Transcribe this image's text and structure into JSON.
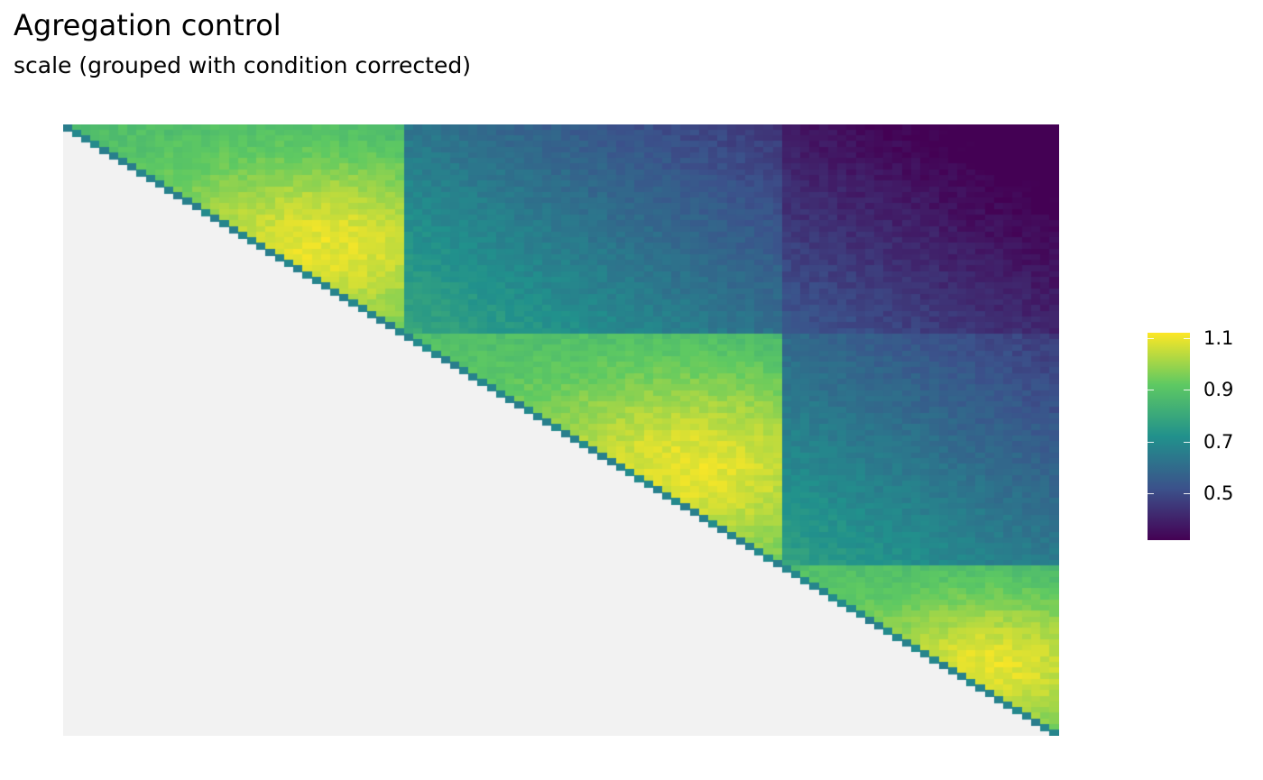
{
  "title": "Agregation control",
  "subtitle": "scale (grouped with condition corrected)",
  "chart_data": {
    "type": "heatmap",
    "layout": "upper-triangle",
    "grid": false,
    "background": "#f2f2f2",
    "n_bins": 108,
    "domains": [
      {
        "start": 0,
        "end": 37
      },
      {
        "start": 37,
        "end": 78
      },
      {
        "start": 78,
        "end": 108
      }
    ],
    "value_range": [
      0.32,
      1.12
    ],
    "colorscale": "viridis",
    "colorscale_stops": [
      "#440154",
      "#3b528b",
      "#21918c",
      "#5ec962",
      "#fde725"
    ],
    "legend": {
      "position": "right",
      "ticks": [
        {
          "value": 1.1,
          "label": "1.1"
        },
        {
          "value": 0.9,
          "label": "0.9"
        },
        {
          "value": 0.7,
          "label": "0.7"
        },
        {
          "value": 0.5,
          "label": "0.5"
        }
      ]
    }
  }
}
